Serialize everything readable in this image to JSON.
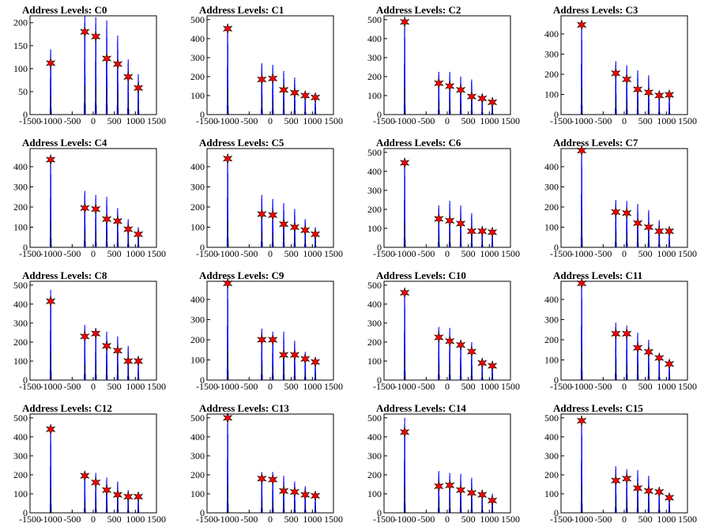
{
  "colors": {
    "histogram": "#0000ff",
    "marker": "#ff0000",
    "marker_outline": "#000000",
    "frame": "#000000"
  },
  "chart_data": [
    {
      "type": "bar",
      "title": "Address Levels: C0",
      "xlim": [
        -1500,
        1500
      ],
      "ylim": [
        0,
        215
      ],
      "yticks": [
        0,
        50,
        100,
        150,
        200
      ],
      "xticks": [
        -1500,
        -1000,
        -500,
        0,
        500,
        1000,
        1500
      ],
      "peaks": {
        "x": [
          -1010,
          -200,
          60,
          320,
          580,
          830,
          1070
        ],
        "heights": [
          142,
          215,
          212,
          205,
          172,
          120,
          88
        ]
      },
      "markers": {
        "x": [
          -1010,
          -200,
          60,
          320,
          580,
          830,
          1070
        ],
        "y": [
          112,
          180,
          170,
          122,
          110,
          82,
          58
        ]
      }
    },
    {
      "type": "bar",
      "title": "Address Levels: C1",
      "xlim": [
        -1500,
        1500
      ],
      "ylim": [
        0,
        520
      ],
      "yticks": [
        0,
        100,
        200,
        300,
        400,
        500
      ],
      "xticks": [
        -1500,
        -1000,
        -500,
        0,
        500,
        1000,
        1500
      ],
      "peaks": {
        "x": [
          -1010,
          -200,
          60,
          320,
          580,
          830,
          1070
        ],
        "heights": [
          455,
          270,
          262,
          230,
          195,
          120,
          100
        ]
      },
      "markers": {
        "x": [
          -1010,
          -200,
          60,
          320,
          580,
          830,
          1070
        ],
        "y": [
          452,
          185,
          190,
          130,
          115,
          100,
          90
        ]
      }
    },
    {
      "type": "bar",
      "title": "Address Levels: C2",
      "xlim": [
        -1500,
        1500
      ],
      "ylim": [
        0,
        520
      ],
      "yticks": [
        0,
        100,
        200,
        300,
        400,
        500
      ],
      "xticks": [
        -1500,
        -1000,
        -500,
        0,
        500,
        1000,
        1500
      ],
      "peaks": {
        "x": [
          -1010,
          -200,
          60,
          320,
          580,
          830,
          1070
        ],
        "heights": [
          490,
          225,
          225,
          200,
          185,
          105,
          85
        ]
      },
      "markers": {
        "x": [
          -1010,
          -200,
          60,
          320,
          580,
          830,
          1070
        ],
        "y": [
          488,
          165,
          150,
          130,
          95,
          85,
          65
        ]
      }
    },
    {
      "type": "bar",
      "title": "Address Levels: C3",
      "xlim": [
        -1500,
        1500
      ],
      "ylim": [
        0,
        490
      ],
      "yticks": [
        0,
        100,
        200,
        300,
        400
      ],
      "xticks": [
        -1500,
        -1000,
        -500,
        0,
        500,
        1000,
        1500
      ],
      "peaks": {
        "x": [
          -1010,
          -200,
          60,
          320,
          580,
          830,
          1070
        ],
        "heights": [
          450,
          265,
          245,
          220,
          195,
          110,
          105
        ]
      },
      "markers": {
        "x": [
          -1010,
          -200,
          60,
          320,
          580,
          830,
          1070
        ],
        "y": [
          445,
          205,
          175,
          125,
          110,
          95,
          98
        ]
      }
    },
    {
      "type": "bar",
      "title": "Address Levels: C4",
      "xlim": [
        -1500,
        1500
      ],
      "ylim": [
        0,
        490
      ],
      "yticks": [
        0,
        100,
        200,
        300,
        400
      ],
      "xticks": [
        -1500,
        -1000,
        -500,
        0,
        500,
        1000,
        1500
      ],
      "peaks": {
        "x": [
          -1010,
          -200,
          60,
          320,
          580,
          830,
          1070
        ],
        "heights": [
          440,
          280,
          260,
          250,
          195,
          140,
          100
        ]
      },
      "markers": {
        "x": [
          -1010,
          -200,
          60,
          320,
          580,
          830,
          1070
        ],
        "y": [
          435,
          195,
          190,
          140,
          130,
          90,
          65
        ]
      }
    },
    {
      "type": "bar",
      "title": "Address Levels: C5",
      "xlim": [
        -1500,
        1500
      ],
      "ylim": [
        0,
        490
      ],
      "yticks": [
        0,
        100,
        200,
        300,
        400
      ],
      "xticks": [
        -1500,
        -1000,
        -500,
        0,
        500,
        1000,
        1500
      ],
      "peaks": {
        "x": [
          -1010,
          -200,
          60,
          320,
          580,
          830,
          1070
        ],
        "heights": [
          450,
          260,
          240,
          220,
          190,
          140,
          100
        ]
      },
      "markers": {
        "x": [
          -1010,
          -200,
          60,
          320,
          580,
          830,
          1070
        ],
        "y": [
          440,
          165,
          160,
          115,
          100,
          85,
          65
        ]
      }
    },
    {
      "type": "bar",
      "title": "Address Levels: C6",
      "xlim": [
        -1500,
        1500
      ],
      "ylim": [
        0,
        520
      ],
      "yticks": [
        0,
        100,
        200,
        300,
        400,
        500
      ],
      "xticks": [
        -1500,
        -1000,
        -500,
        0,
        500,
        1000,
        1500
      ],
      "peaks": {
        "x": [
          -1010,
          -200,
          60,
          320,
          580,
          830,
          1070
        ],
        "heights": [
          455,
          220,
          245,
          220,
          180,
          110,
          90
        ]
      },
      "markers": {
        "x": [
          -1010,
          -200,
          60,
          320,
          580,
          830,
          1070
        ],
        "y": [
          445,
          150,
          140,
          125,
          85,
          85,
          80
        ]
      }
    },
    {
      "type": "bar",
      "title": "Address Levels: C7",
      "xlim": [
        -1500,
        1500
      ],
      "ylim": [
        0,
        490
      ],
      "yticks": [
        0,
        100,
        200,
        300,
        400
      ],
      "xticks": [
        -1500,
        -1000,
        -500,
        0,
        500,
        1000,
        1500
      ],
      "peaks": {
        "x": [
          -1010,
          -200,
          60,
          320,
          580,
          830,
          1070
        ],
        "heights": [
          485,
          235,
          230,
          215,
          185,
          135,
          85
        ]
      },
      "markers": {
        "x": [
          -1010,
          -200,
          60,
          320,
          580,
          830,
          1070
        ],
        "y": [
          480,
          175,
          170,
          120,
          100,
          80,
          80
        ]
      }
    },
    {
      "type": "bar",
      "title": "Address Levels: C8",
      "xlim": [
        -1500,
        1500
      ],
      "ylim": [
        0,
        520
      ],
      "yticks": [
        0,
        100,
        200,
        300,
        400,
        500
      ],
      "xticks": [
        -1500,
        -1000,
        -500,
        0,
        500,
        1000,
        1500
      ],
      "peaks": {
        "x": [
          -1010,
          -200,
          60,
          320,
          580,
          830,
          1070
        ],
        "heights": [
          475,
          290,
          275,
          255,
          230,
          180,
          110
        ]
      },
      "markers": {
        "x": [
          -1010,
          -200,
          60,
          320,
          580,
          830,
          1070
        ],
        "y": [
          415,
          230,
          245,
          180,
          155,
          100,
          100
        ]
      }
    },
    {
      "type": "bar",
      "title": "Address Levels: C9",
      "xlim": [
        -1500,
        1500
      ],
      "ylim": [
        0,
        490
      ],
      "yticks": [
        0,
        100,
        200,
        300,
        400
      ],
      "xticks": [
        -1500,
        -1000,
        -500,
        0,
        500,
        1000,
        1500
      ],
      "peaks": {
        "x": [
          -1010,
          -200,
          60,
          320,
          580,
          830,
          1070
        ],
        "heights": [
          490,
          255,
          240,
          240,
          195,
          140,
          100
        ]
      },
      "markers": {
        "x": [
          -1010,
          -200,
          60,
          320,
          580,
          830,
          1070
        ],
        "y": [
          480,
          200,
          200,
          125,
          125,
          105,
          90
        ]
      }
    },
    {
      "type": "bar",
      "title": "Address Levels: C10",
      "xlim": [
        -1500,
        1500
      ],
      "ylim": [
        0,
        520
      ],
      "yticks": [
        0,
        100,
        200,
        300,
        400,
        500
      ],
      "xticks": [
        -1500,
        -1000,
        -500,
        0,
        500,
        1000,
        1500
      ],
      "peaks": {
        "x": [
          -1010,
          -200,
          60,
          320,
          580,
          830,
          1070
        ],
        "heights": [
          465,
          280,
          275,
          210,
          200,
          115,
          95
        ]
      },
      "markers": {
        "x": [
          -1010,
          -200,
          60,
          320,
          580,
          830,
          1070
        ],
        "y": [
          460,
          225,
          205,
          185,
          150,
          90,
          75
        ]
      }
    },
    {
      "type": "bar",
      "title": "Address Levels: C11",
      "xlim": [
        -1500,
        1500
      ],
      "ylim": [
        0,
        490
      ],
      "yticks": [
        0,
        100,
        200,
        300,
        400
      ],
      "xticks": [
        -1500,
        -1000,
        -500,
        0,
        500,
        1000,
        1500
      ],
      "peaks": {
        "x": [
          -1010,
          -200,
          60,
          320,
          580,
          830,
          1070
        ],
        "heights": [
          490,
          285,
          270,
          235,
          200,
          130,
          95
        ]
      },
      "markers": {
        "x": [
          -1010,
          -200,
          60,
          320,
          580,
          830,
          1070
        ],
        "y": [
          480,
          230,
          230,
          160,
          140,
          110,
          80
        ]
      }
    },
    {
      "type": "bar",
      "title": "Address Levels: C12",
      "xlim": [
        -1500,
        1500
      ],
      "ylim": [
        0,
        520
      ],
      "yticks": [
        0,
        100,
        200,
        300,
        400,
        500
      ],
      "xticks": [
        -1500,
        -1000,
        -500,
        0,
        500,
        1000,
        1500
      ],
      "peaks": {
        "x": [
          -1010,
          -200,
          60,
          320,
          580,
          830,
          1070
        ],
        "heights": [
          445,
          195,
          210,
          185,
          165,
          120,
          100
        ]
      },
      "markers": {
        "x": [
          -1010,
          -200,
          60,
          320,
          580,
          830,
          1070
        ],
        "y": [
          440,
          195,
          160,
          120,
          95,
          85,
          85
        ]
      }
    },
    {
      "type": "bar",
      "title": "Address Levels: C13",
      "xlim": [
        -1500,
        1500
      ],
      "ylim": [
        0,
        520
      ],
      "yticks": [
        0,
        100,
        200,
        300,
        400,
        500
      ],
      "xticks": [
        -1500,
        -1000,
        -500,
        0,
        500,
        1000,
        1500
      ],
      "peaks": {
        "x": [
          -1010,
          -200,
          60,
          320,
          580,
          830,
          1070
        ],
        "heights": [
          505,
          215,
          215,
          195,
          165,
          140,
          100
        ]
      },
      "markers": {
        "x": [
          -1010,
          -200,
          60,
          320,
          580,
          830,
          1070
        ],
        "y": [
          500,
          180,
          175,
          115,
          110,
          95,
          90
        ]
      }
    },
    {
      "type": "bar",
      "title": "Address Levels: C14",
      "xlim": [
        -1500,
        1500
      ],
      "ylim": [
        0,
        520
      ],
      "yticks": [
        0,
        100,
        200,
        300,
        400,
        500
      ],
      "xticks": [
        -1500,
        -1000,
        -500,
        0,
        500,
        1000,
        1500
      ],
      "peaks": {
        "x": [
          -1010,
          -200,
          60,
          320,
          580,
          830,
          1070
        ],
        "heights": [
          500,
          220,
          210,
          205,
          185,
          120,
          100
        ]
      },
      "markers": {
        "x": [
          -1010,
          -200,
          60,
          320,
          580,
          830,
          1070
        ],
        "y": [
          425,
          140,
          145,
          120,
          105,
          95,
          65
        ]
      }
    },
    {
      "type": "bar",
      "title": "Address Levels: C15",
      "xlim": [
        -1500,
        1500
      ],
      "ylim": [
        0,
        520
      ],
      "yticks": [
        0,
        100,
        200,
        300,
        400,
        500
      ],
      "xticks": [
        -1500,
        -1000,
        -500,
        0,
        500,
        1000,
        1500
      ],
      "peaks": {
        "x": [
          -1010,
          -200,
          60,
          320,
          580,
          830,
          1070
        ],
        "heights": [
          495,
          245,
          230,
          225,
          195,
          135,
          95
        ]
      },
      "markers": {
        "x": [
          -1010,
          -200,
          60,
          320,
          580,
          830,
          1070
        ],
        "y": [
          485,
          170,
          180,
          130,
          115,
          110,
          80
        ]
      }
    }
  ]
}
